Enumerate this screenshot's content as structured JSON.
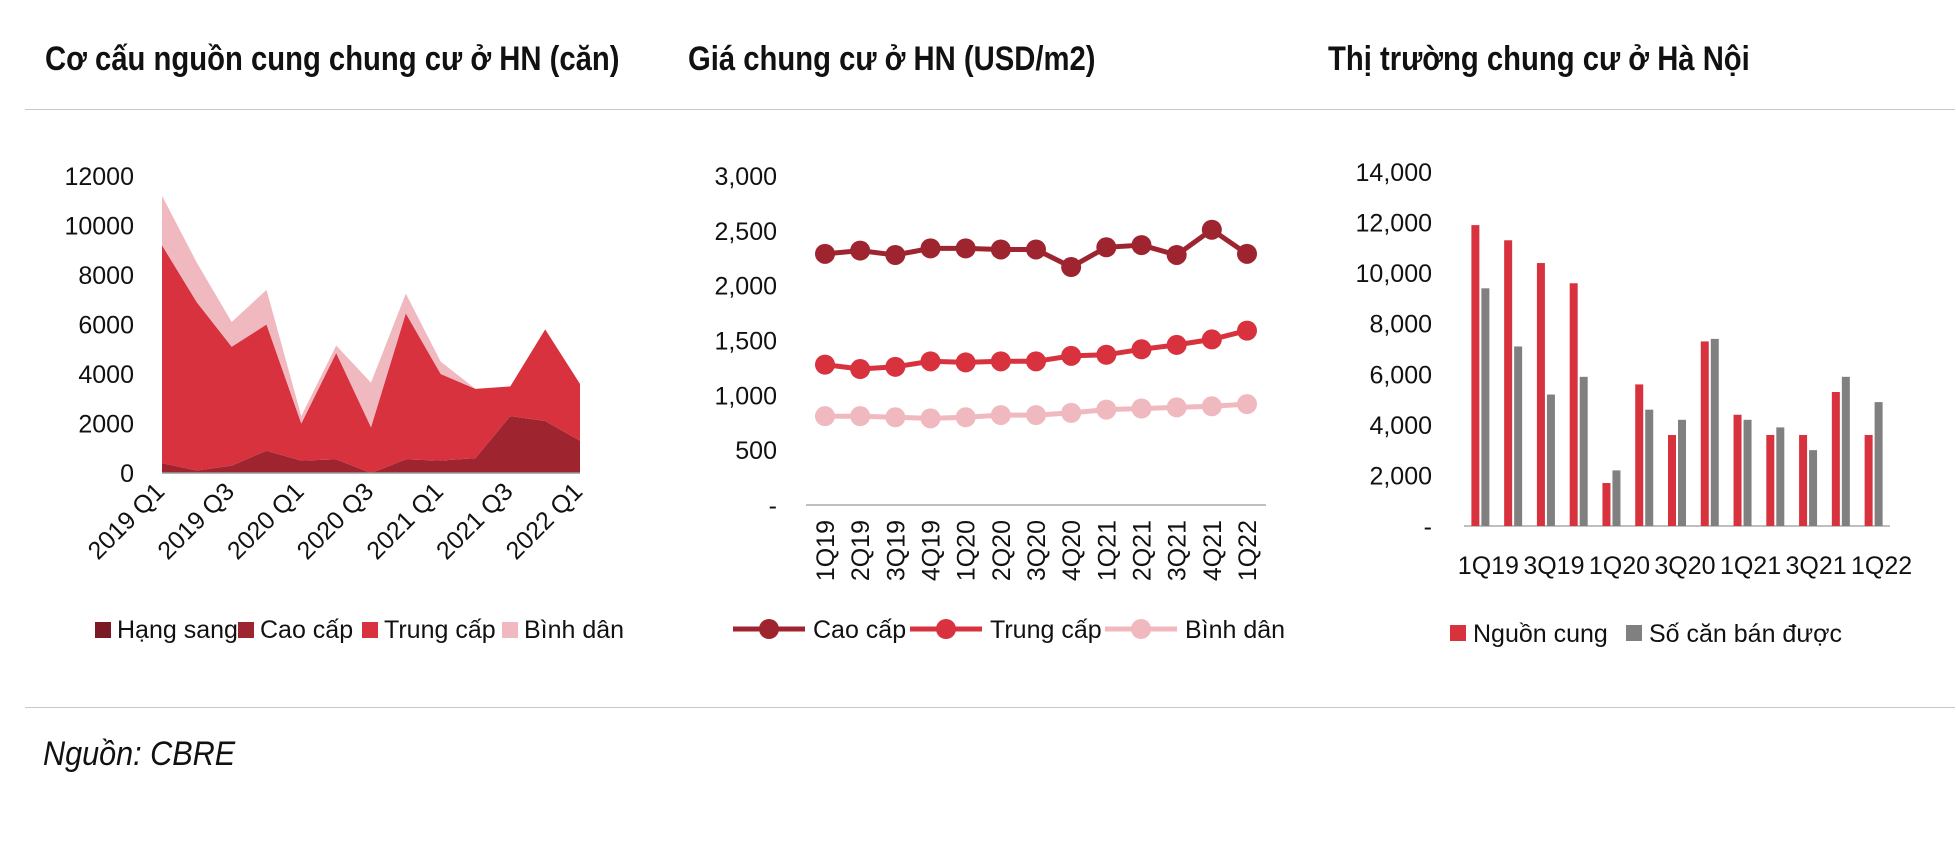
{
  "colors": {
    "hang_sang": "#7a1a25",
    "cao_cap": "#9e2530",
    "trung_cap": "#d8323f",
    "binh_dan": "#f0b8bf",
    "nguon_cung": "#d8323f",
    "so_can": "#808080"
  },
  "source": "Nguồn: CBRE",
  "chart_data": [
    {
      "type": "area",
      "title": "Cơ cấu nguồn cung chung cư ở HN (căn)",
      "x": [
        "2019 Q1",
        "2019 Q2",
        "2019 Q3",
        "2019 Q4",
        "2020 Q1",
        "2020 Q2",
        "2020 Q3",
        "2020 Q4",
        "2021 Q1",
        "2021 Q2",
        "2021 Q3",
        "2021 Q4",
        "2022 Q1"
      ],
      "x_tick_labels": [
        "2019 Q1",
        "2019 Q3",
        "2020 Q1",
        "2020 Q3",
        "2021 Q1",
        "2021 Q3",
        "2022 Q1"
      ],
      "y_ticks": [
        "12000",
        "10000",
        "8000",
        "6000",
        "4000",
        "2000",
        "0"
      ],
      "ylim": [
        0,
        12000
      ],
      "stacked": true,
      "series": [
        {
          "name": "Hạng sang",
          "color_key": "hang_sang",
          "values": [
            0,
            0,
            0,
            0,
            0,
            0,
            0,
            0,
            0,
            0,
            0,
            0,
            0
          ]
        },
        {
          "name": "Cao cấp",
          "color_key": "cao_cap",
          "values": [
            400,
            100,
            300,
            900,
            500,
            550,
            0,
            550,
            500,
            600,
            2300,
            2100,
            1300
          ]
        },
        {
          "name": "Trung cấp",
          "color_key": "trung_cap",
          "values": [
            8800,
            6800,
            4800,
            5100,
            1500,
            4300,
            1850,
            5900,
            3500,
            2800,
            1200,
            3700,
            2300
          ]
        },
        {
          "name": "Bình dân",
          "color_key": "binh_dan",
          "values": [
            2000,
            1600,
            1000,
            1400,
            300,
            300,
            1800,
            800,
            500,
            0,
            0,
            0,
            0
          ]
        }
      ],
      "legend": [
        "Hạng sang",
        "Cao cấp",
        "Trung cấp",
        "Bình dân"
      ],
      "legend_position": "bottom"
    },
    {
      "type": "line",
      "title": "Giá chung cư ở HN (USD/m2)",
      "x": [
        "1Q19",
        "2Q19",
        "3Q19",
        "4Q19",
        "1Q20",
        "2Q20",
        "3Q20",
        "4Q20",
        "1Q21",
        "2Q21",
        "3Q21",
        "4Q21",
        "1Q22"
      ],
      "y_ticks": [
        "3,000",
        "2,500",
        "2,000",
        "1,500",
        "1,000",
        "500",
        "-"
      ],
      "ylim": [
        0,
        3000
      ],
      "series": [
        {
          "name": "Cao cấp",
          "color_key": "cao_cap",
          "values": [
            2290,
            2320,
            2280,
            2340,
            2340,
            2330,
            2330,
            2170,
            2350,
            2370,
            2280,
            2510,
            2290
          ]
        },
        {
          "name": "Trung cấp",
          "color_key": "trung_cap",
          "values": [
            1280,
            1240,
            1260,
            1310,
            1300,
            1310,
            1310,
            1360,
            1370,
            1420,
            1460,
            1510,
            1590
          ]
        },
        {
          "name": "Bình dân",
          "color_key": "binh_dan",
          "values": [
            810,
            810,
            800,
            790,
            800,
            820,
            820,
            840,
            870,
            880,
            890,
            900,
            920
          ]
        }
      ],
      "legend": [
        "Cao cấp",
        "Trung cấp",
        "Bình dân"
      ],
      "legend_position": "bottom"
    },
    {
      "type": "bar",
      "title": "Thị trường chung cư ở Hà Nội",
      "categories": [
        "1Q19",
        "2Q19",
        "3Q19",
        "4Q19",
        "1Q20",
        "2Q20",
        "3Q20",
        "4Q20",
        "1Q21",
        "2Q21",
        "3Q21",
        "4Q21",
        "1Q22"
      ],
      "x_tick_labels": [
        "1Q19",
        "3Q19",
        "1Q20",
        "3Q20",
        "1Q21",
        "3Q21",
        "1Q22"
      ],
      "y_ticks": [
        "14,000",
        "12,000",
        "10,000",
        "8,000",
        "6,000",
        "4,000",
        "2,000",
        "-"
      ],
      "ylim": [
        0,
        14000
      ],
      "series": [
        {
          "name": "Nguồn cung",
          "color_key": "nguon_cung",
          "values": [
            11900,
            11300,
            10400,
            9600,
            1700,
            5600,
            3600,
            7300,
            4400,
            3600,
            3600,
            5300,
            3600
          ]
        },
        {
          "name": "Số căn bán được",
          "color_key": "so_can",
          "values": [
            9400,
            7100,
            5200,
            5900,
            2200,
            4600,
            4200,
            7400,
            4200,
            3900,
            3000,
            5900,
            4900
          ]
        }
      ],
      "legend": [
        "Nguồn cung",
        "Số căn bán được"
      ],
      "legend_position": "bottom"
    }
  ]
}
